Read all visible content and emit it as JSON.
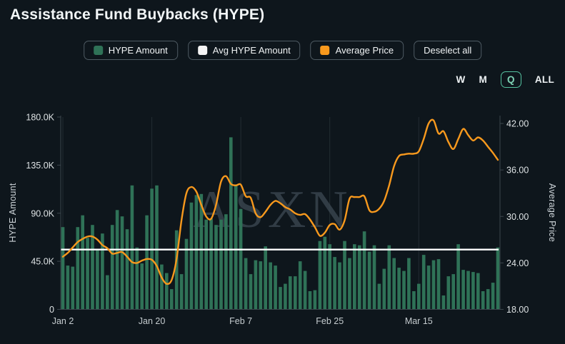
{
  "title": "Assistance Fund Buybacks (HYPE)",
  "legend": [
    {
      "label": "HYPE Amount",
      "swatch": "#2f7257"
    },
    {
      "label": "Avg HYPE Amount",
      "swatch": "#f5f5f5"
    },
    {
      "label": "Average Price",
      "swatch": "#f8991d"
    },
    {
      "label": "Deselect all",
      "swatch": null
    }
  ],
  "range_buttons": {
    "options": [
      "W",
      "M",
      "Q",
      "ALL"
    ],
    "selected": "Q"
  },
  "watermark": "ASXN",
  "colors": {
    "background": "#0e161c",
    "bar": "#2f7257",
    "avg_line": "#ffffff",
    "price_line": "#f8991d",
    "grid": "#232c32",
    "axis": "#3b454c"
  },
  "chart_data": {
    "type": "bar",
    "title": "Assistance Fund Buybacks (HYPE)",
    "categories": [
      "Jan 2",
      "Jan 3",
      "Jan 4",
      "Jan 5",
      "Jan 6",
      "Jan 7",
      "Jan 8",
      "Jan 9",
      "Jan 10",
      "Jan 11",
      "Jan 12",
      "Jan 13",
      "Jan 14",
      "Jan 15",
      "Jan 16",
      "Jan 17",
      "Jan 18",
      "Jan 19",
      "Jan 20",
      "Jan 21",
      "Jan 22",
      "Jan 23",
      "Jan 24",
      "Jan 25",
      "Jan 26",
      "Jan 27",
      "Jan 28",
      "Jan 29",
      "Jan 30",
      "Jan 31",
      "Feb 1",
      "Feb 2",
      "Feb 3",
      "Feb 4",
      "Feb 5",
      "Feb 6",
      "Feb 7",
      "Feb 8",
      "Feb 9",
      "Feb 10",
      "Feb 11",
      "Feb 12",
      "Feb 13",
      "Feb 14",
      "Feb 15",
      "Feb 16",
      "Feb 17",
      "Feb 18",
      "Feb 19",
      "Feb 20",
      "Feb 21",
      "Feb 22",
      "Feb 23",
      "Feb 24",
      "Feb 25",
      "Feb 26",
      "Feb 27",
      "Feb 28",
      "Mar 1",
      "Mar 2",
      "Mar 3",
      "Mar 4",
      "Mar 5",
      "Mar 6",
      "Mar 7",
      "Mar 8",
      "Mar 9",
      "Mar 10",
      "Mar 11",
      "Mar 12",
      "Mar 13",
      "Mar 14",
      "Mar 15",
      "Mar 16",
      "Mar 17",
      "Mar 18",
      "Mar 19",
      "Mar 20",
      "Mar 21",
      "Mar 22",
      "Mar 23",
      "Mar 24",
      "Mar 25",
      "Mar 26",
      "Mar 27",
      "Mar 28",
      "Mar 29",
      "Mar 30",
      "Mar 31"
    ],
    "series": [
      {
        "name": "HYPE Amount",
        "type": "bar",
        "axis": "left",
        "color": "#2f7257",
        "values": [
          77000,
          41000,
          40000,
          77000,
          88000,
          67000,
          79000,
          56000,
          71000,
          32000,
          79000,
          93000,
          87000,
          75000,
          116000,
          58000,
          43000,
          88000,
          113000,
          116000,
          42000,
          34000,
          19000,
          74000,
          33000,
          66000,
          100000,
          107000,
          108000,
          84000,
          85000,
          79000,
          84000,
          89000,
          161000,
          117000,
          94000,
          48000,
          33000,
          46000,
          45000,
          59000,
          44000,
          41000,
          21000,
          24000,
          31000,
          31000,
          45000,
          36000,
          17000,
          18000,
          64000,
          68000,
          61000,
          49000,
          44000,
          64000,
          48000,
          61000,
          60000,
          73000,
          54000,
          60000,
          24000,
          38000,
          60000,
          48000,
          39000,
          36000,
          48000,
          17000,
          24000,
          51000,
          41000,
          46000,
          47000,
          13000,
          31000,
          33000,
          61000,
          37000,
          36000,
          35000,
          34000,
          17000,
          19000,
          25000,
          58000
        ]
      },
      {
        "name": "Avg HYPE Amount",
        "type": "hline",
        "axis": "left",
        "color": "#ffffff",
        "value": 56000
      },
      {
        "name": "Average Price",
        "type": "line",
        "axis": "right",
        "color": "#f8991d",
        "values": [
          24.8,
          25.3,
          26.0,
          26.7,
          27.1,
          27.4,
          27.4,
          27.0,
          26.3,
          25.9,
          25.2,
          25.3,
          25.4,
          24.8,
          24.1,
          24.0,
          24.3,
          24.5,
          24.4,
          23.6,
          22.1,
          21.3,
          21.8,
          24.5,
          29.5,
          33.0,
          33.8,
          33.2,
          31.5,
          30.0,
          29.7,
          31.5,
          34.5,
          35.2,
          34.2,
          34.0,
          34.1,
          32.6,
          32.4,
          30.4,
          29.9,
          30.6,
          31.5,
          32.0,
          31.7,
          31.2,
          30.9,
          30.4,
          30.2,
          30.3,
          29.6,
          28.6,
          27.5,
          27.9,
          28.9,
          29.0,
          28.3,
          29.5,
          32.3,
          32.5,
          32.5,
          32.6,
          30.8,
          30.6,
          31.0,
          32.0,
          34.0,
          36.5,
          37.8,
          38.0,
          38.1,
          38.1,
          38.4,
          40.0,
          42.0,
          42.4,
          40.7,
          41.0,
          39.6,
          38.7,
          40.0,
          41.3,
          40.5,
          39.8,
          40.2,
          39.8,
          39.0,
          38.2,
          37.3
        ]
      }
    ],
    "left_axis": {
      "label": "HYPE Amount",
      "tick_labels": [
        "0",
        "45.0K",
        "90.0K",
        "135.0K",
        "180.0K"
      ],
      "tick_values": [
        0,
        45000,
        90000,
        135000,
        180000
      ],
      "range": [
        0,
        180000
      ]
    },
    "right_axis": {
      "label": "Average Price",
      "tick_labels": [
        "18.00",
        "24.00",
        "30.00",
        "36.00",
        "42.00"
      ],
      "tick_values": [
        18,
        24,
        30,
        36,
        42
      ],
      "range": [
        18,
        42
      ]
    },
    "x_axis": {
      "tick_labels": [
        "Jan 2",
        "Jan 20",
        "Feb 7",
        "Feb 25",
        "Mar 15"
      ],
      "tick_indices": [
        0,
        18,
        36,
        54,
        72
      ]
    },
    "grid": "vertical-gridlines-at-x-ticks",
    "legend_position": "top-center",
    "watermark": "ASXN"
  }
}
